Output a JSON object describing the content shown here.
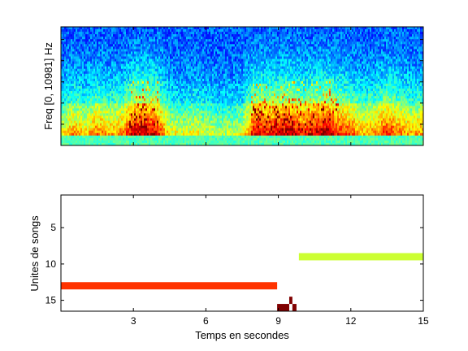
{
  "chart_data": [
    {
      "type": "heatmap",
      "ylabel": "Freq [0, 10981] Hz",
      "xlim": [
        0,
        15
      ],
      "colormap": "jet",
      "x_tick_values": [
        3,
        6,
        9,
        12,
        15
      ],
      "y_tick_count": 5,
      "grid": false,
      "background_color": "#20c8d8",
      "energy_profile": [
        {
          "t": 0.0,
          "e": 0.35
        },
        {
          "t": 0.5,
          "e": 0.55
        },
        {
          "t": 1.0,
          "e": 0.45
        },
        {
          "t": 1.5,
          "e": 0.6
        },
        {
          "t": 2.0,
          "e": 0.5
        },
        {
          "t": 2.5,
          "e": 0.55
        },
        {
          "t": 3.0,
          "e": 0.8
        },
        {
          "t": 3.5,
          "e": 0.85
        },
        {
          "t": 4.0,
          "e": 0.75
        },
        {
          "t": 4.5,
          "e": 0.4
        },
        {
          "t": 5.0,
          "e": 0.35
        },
        {
          "t": 5.5,
          "e": 0.4
        },
        {
          "t": 6.0,
          "e": 0.35
        },
        {
          "t": 6.5,
          "e": 0.3
        },
        {
          "t": 7.0,
          "e": 0.3
        },
        {
          "t": 7.5,
          "e": 0.35
        },
        {
          "t": 8.0,
          "e": 0.8
        },
        {
          "t": 8.5,
          "e": 0.75
        },
        {
          "t": 9.0,
          "e": 0.8
        },
        {
          "t": 9.5,
          "e": 0.85
        },
        {
          "t": 10.0,
          "e": 0.7
        },
        {
          "t": 10.5,
          "e": 0.8
        },
        {
          "t": 11.0,
          "e": 0.85
        },
        {
          "t": 11.5,
          "e": 0.7
        },
        {
          "t": 12.0,
          "e": 0.65
        },
        {
          "t": 12.5,
          "e": 0.5
        },
        {
          "t": 13.0,
          "e": 0.55
        },
        {
          "t": 13.5,
          "e": 0.7
        },
        {
          "t": 14.0,
          "e": 0.6
        },
        {
          "t": 14.5,
          "e": 0.5
        },
        {
          "t": 15.0,
          "e": 0.55
        }
      ]
    },
    {
      "type": "bar",
      "xlabel": "Temps en secondes",
      "ylabel": "Unites de songs",
      "xlim": [
        0,
        15
      ],
      "ylim": [
        0.5,
        16.5
      ],
      "y_reversed": true,
      "x_ticks": [
        "3",
        "6",
        "9",
        "12",
        "15"
      ],
      "x_tick_values": [
        3,
        6,
        9,
        12,
        15
      ],
      "y_ticks": [
        "5",
        "10",
        "15"
      ],
      "y_tick_values": [
        5,
        10,
        15
      ],
      "grid": false,
      "segments": [
        {
          "unit": 13,
          "start": 0.0,
          "end": 8.95,
          "color": "#ff3300"
        },
        {
          "unit": 9,
          "start": 9.85,
          "end": 15.0,
          "color": "#ccff33"
        },
        {
          "unit": 16,
          "start": 8.95,
          "end": 9.45,
          "color": "#800000"
        },
        {
          "unit": 15,
          "start": 9.45,
          "end": 9.58,
          "color": "#800000"
        },
        {
          "unit": 16,
          "start": 9.58,
          "end": 9.75,
          "color": "#800000"
        }
      ]
    }
  ]
}
